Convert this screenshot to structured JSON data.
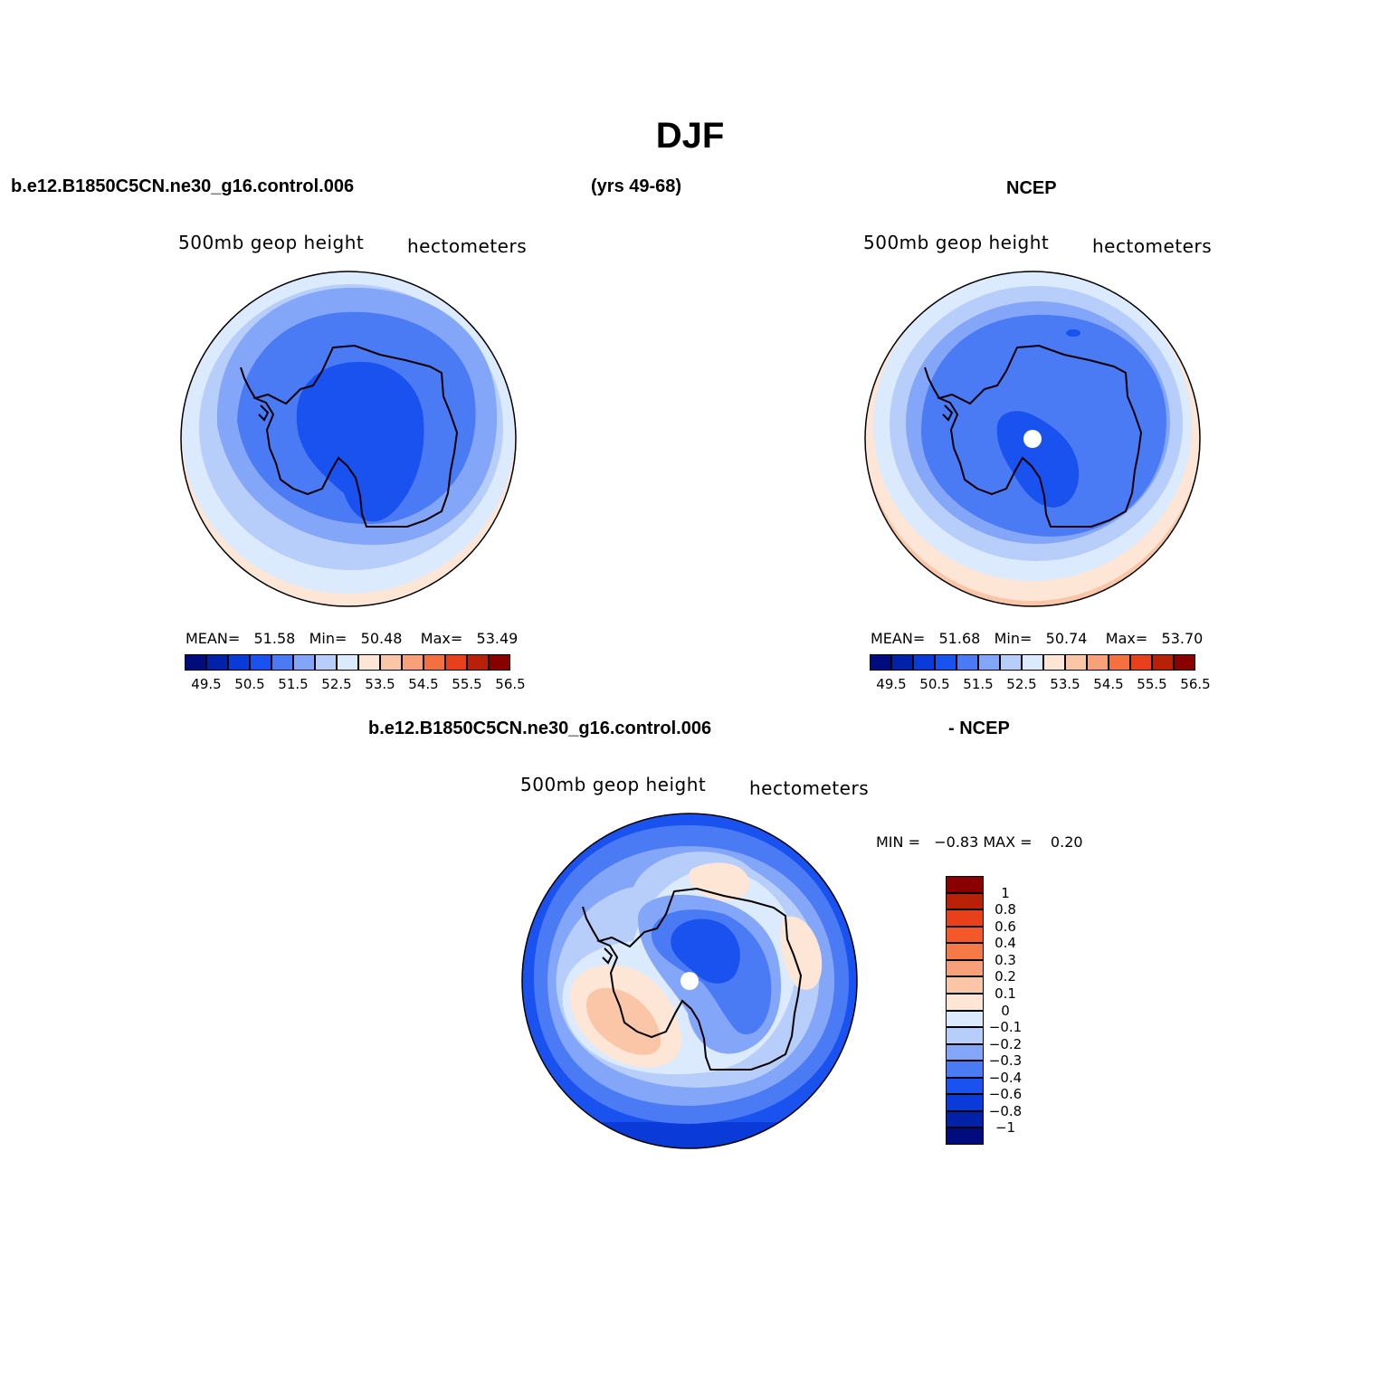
{
  "header": {
    "main_title": "DJF",
    "case_name": "b.e12.B1850C5CN.ne30_g16.control.006",
    "years": "(yrs 49-68)",
    "obs_name": "NCEP",
    "diff_case_name": "b.e12.B1850C5CN.ne30_g16.control.006",
    "diff_obs_name": "- NCEP"
  },
  "panels": {
    "model": {
      "variable": "500mb geop height",
      "units": "hectometers",
      "stats": {
        "mean_label": "MEAN=",
        "mean": "51.58",
        "min_label": "Min=",
        "min": "50.48",
        "max_label": "Max=",
        "max": "53.49"
      }
    },
    "obs": {
      "variable": "500mb geop height",
      "units": "hectometers",
      "stats": {
        "mean_label": "MEAN=",
        "mean": "51.68",
        "min_label": "Min=",
        "min": "50.74",
        "max_label": "Max=",
        "max": "53.70"
      }
    },
    "diff": {
      "variable": "500mb geop height",
      "units": "hectometers",
      "stats": {
        "min_label": "MIN =",
        "min": "−0.83",
        "max_label": "MAX =",
        "max": "0.20"
      }
    }
  },
  "colorbar_main": {
    "colors": [
      "#000c7e",
      "#0021a8",
      "#0a3ad8",
      "#1a52f0",
      "#4a7af4",
      "#84a6f8",
      "#b8cefa",
      "#dbeafd",
      "#fde6d6",
      "#fbc6a8",
      "#f7a07a",
      "#f57040",
      "#e8401a",
      "#b82008",
      "#880000"
    ],
    "labels": [
      "49.5",
      "50.5",
      "51.5",
      "52.5",
      "53.5",
      "54.5",
      "55.5",
      "56.5"
    ]
  },
  "colorbar_diff": {
    "colors": [
      "#880000",
      "#b82008",
      "#e8401a",
      "#f55828",
      "#f57a48",
      "#f7a07a",
      "#fbc6a8",
      "#fde6d6",
      "#dbeafd",
      "#b8cefa",
      "#84a6f8",
      "#4a7af4",
      "#1a52f0",
      "#0a3ad8",
      "#0021a8",
      "#000c7e"
    ],
    "labels": [
      "1",
      "0.8",
      "0.6",
      "0.4",
      "0.3",
      "0.2",
      "0.1",
      "0",
      "−0.1",
      "−0.2",
      "−0.3",
      "−0.4",
      "−0.6",
      "−0.8",
      "−1"
    ]
  }
}
